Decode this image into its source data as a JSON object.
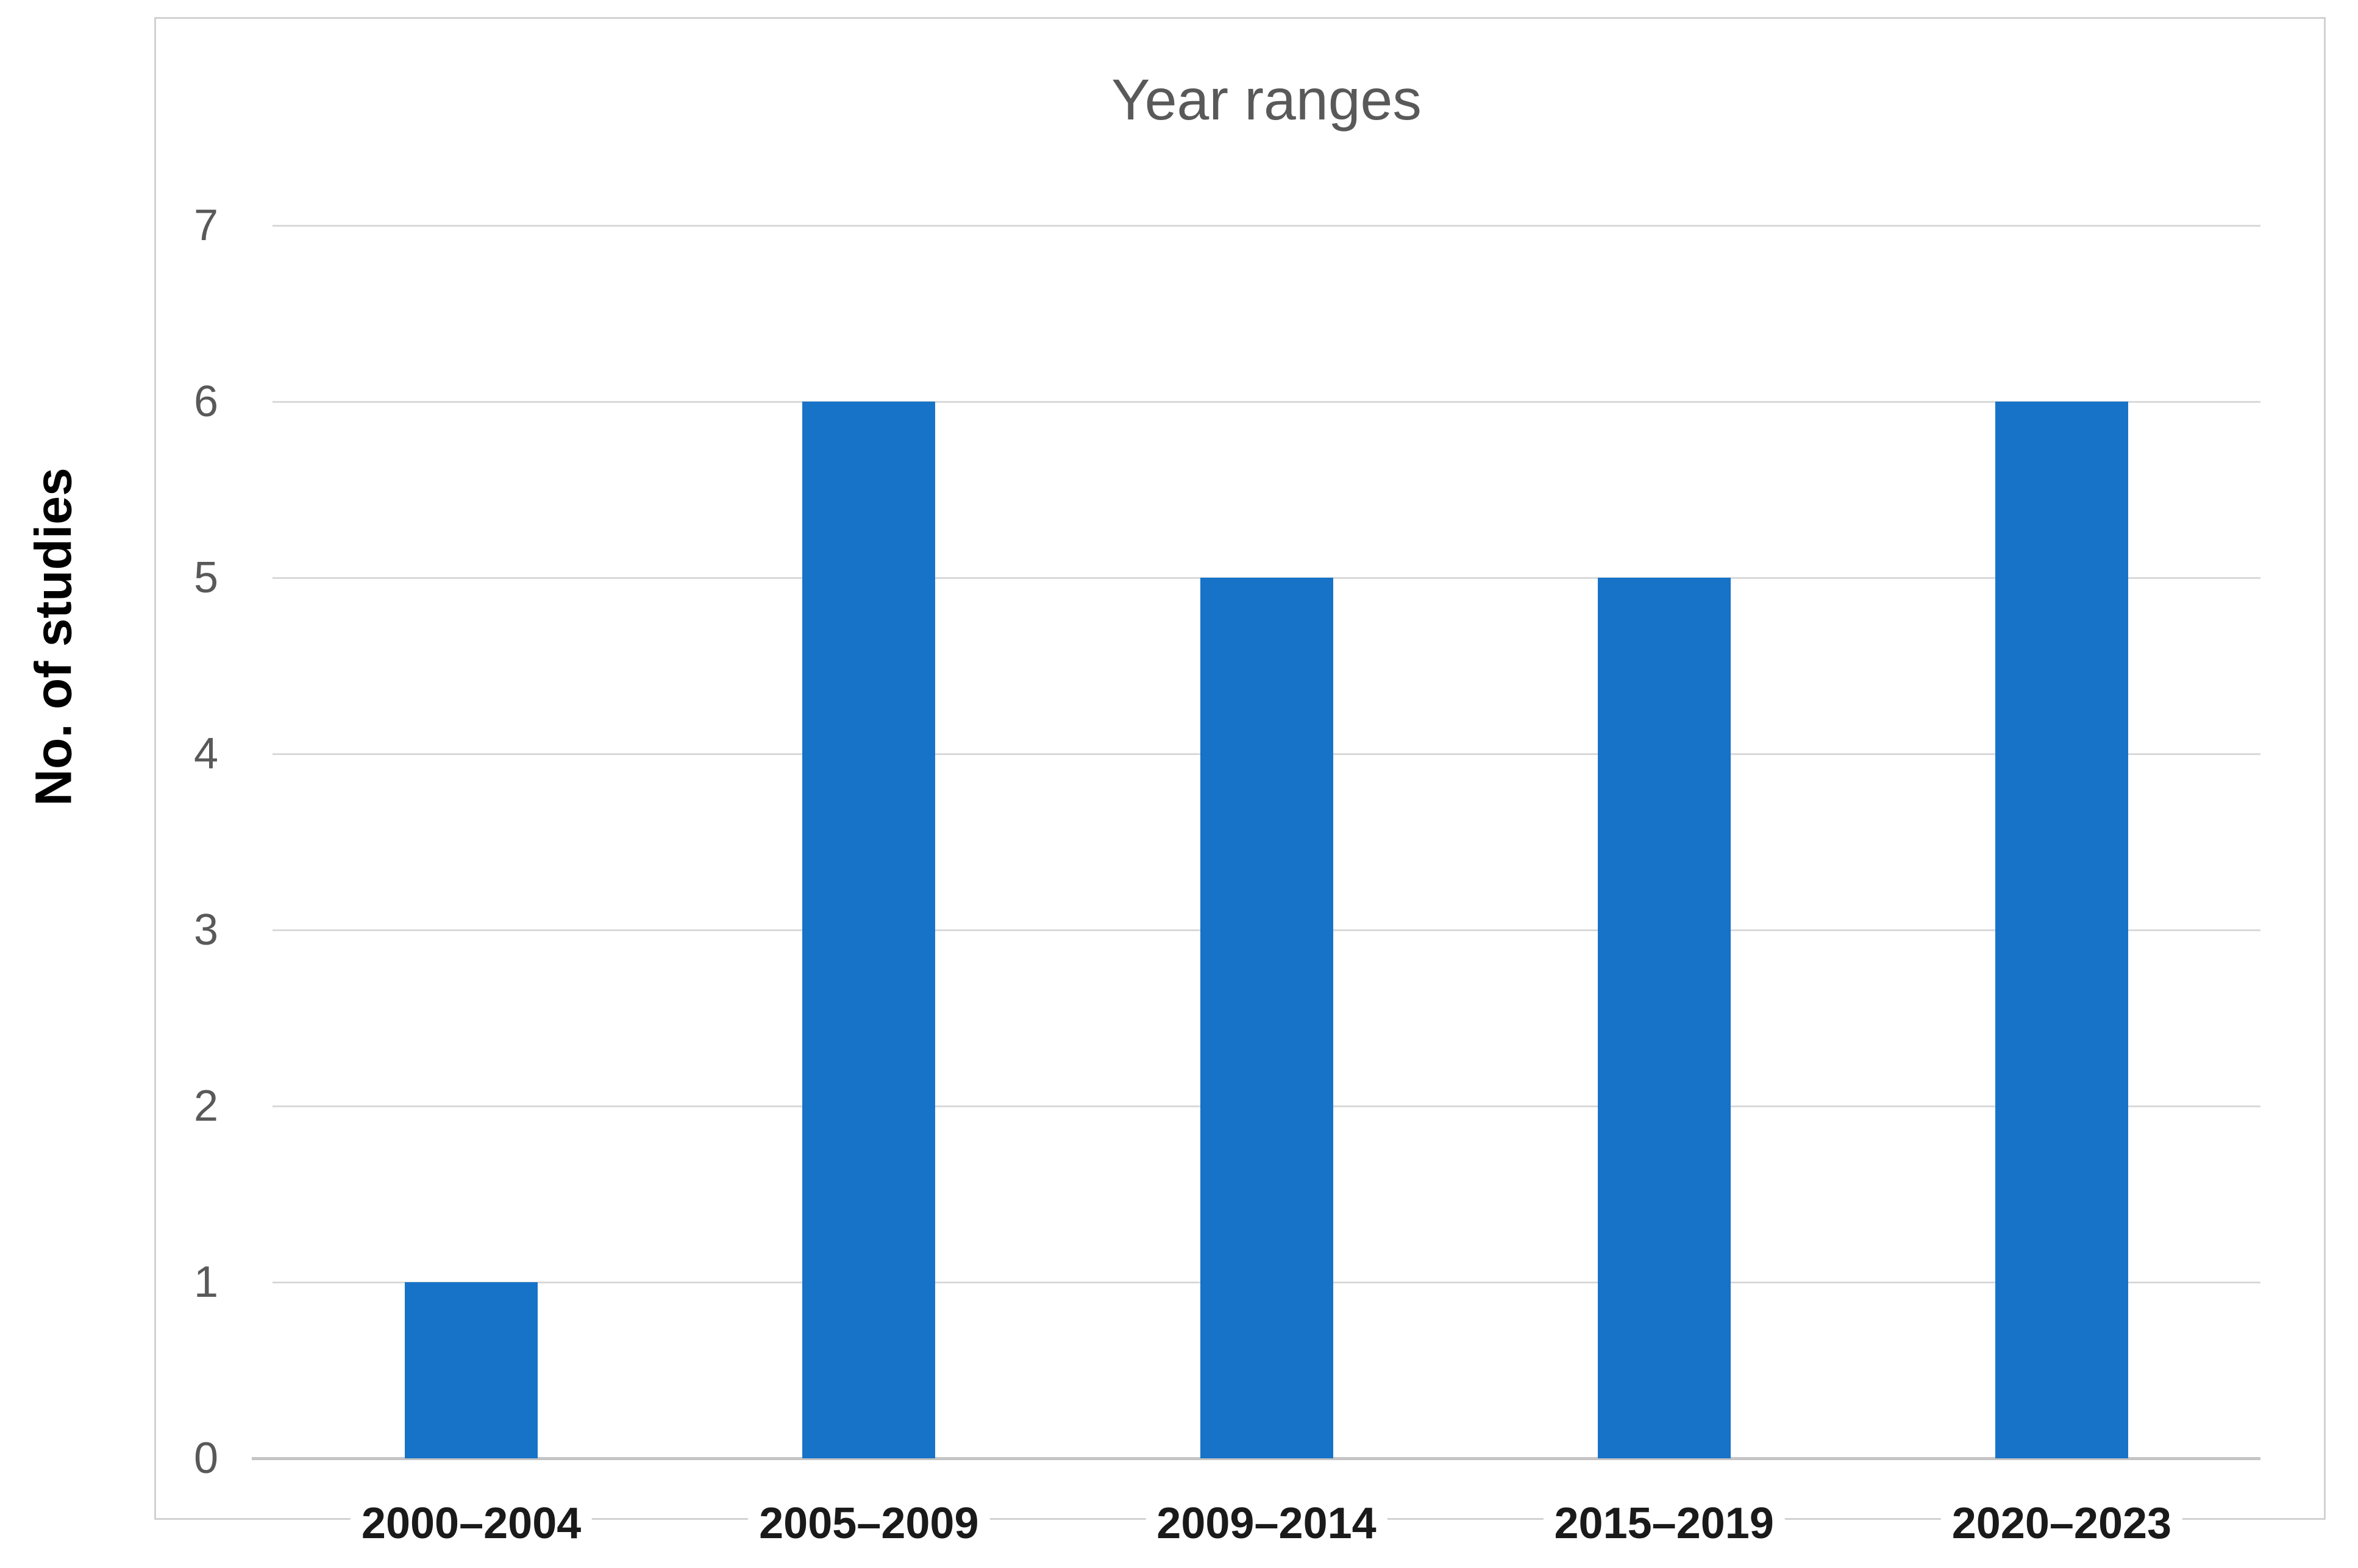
{
  "page": {
    "background_color": "#FFFFFF"
  },
  "chart_data": {
    "type": "bar",
    "title": "Year ranges",
    "xlabel": "",
    "ylabel": "No. of studies",
    "categories": [
      "2000–2004",
      "2005–2009",
      "2009–2014",
      "2015–2019",
      "2020–2023"
    ],
    "values": [
      1,
      6,
      5,
      5,
      6
    ],
    "ylim": [
      0,
      7
    ],
    "yticks": [
      0,
      1,
      2,
      3,
      4,
      5,
      6,
      7
    ],
    "grid": "horizontal",
    "legend_position": "none",
    "bar_color": "#1773C8",
    "gridline_color": "#D9D9D9",
    "baseline_color": "#C4C4C4",
    "frame_border_color": "#D2D2D2",
    "title_color": "#595959",
    "ytick_label_color": "#595959",
    "xtick_label_color": "#1A1A1A"
  }
}
